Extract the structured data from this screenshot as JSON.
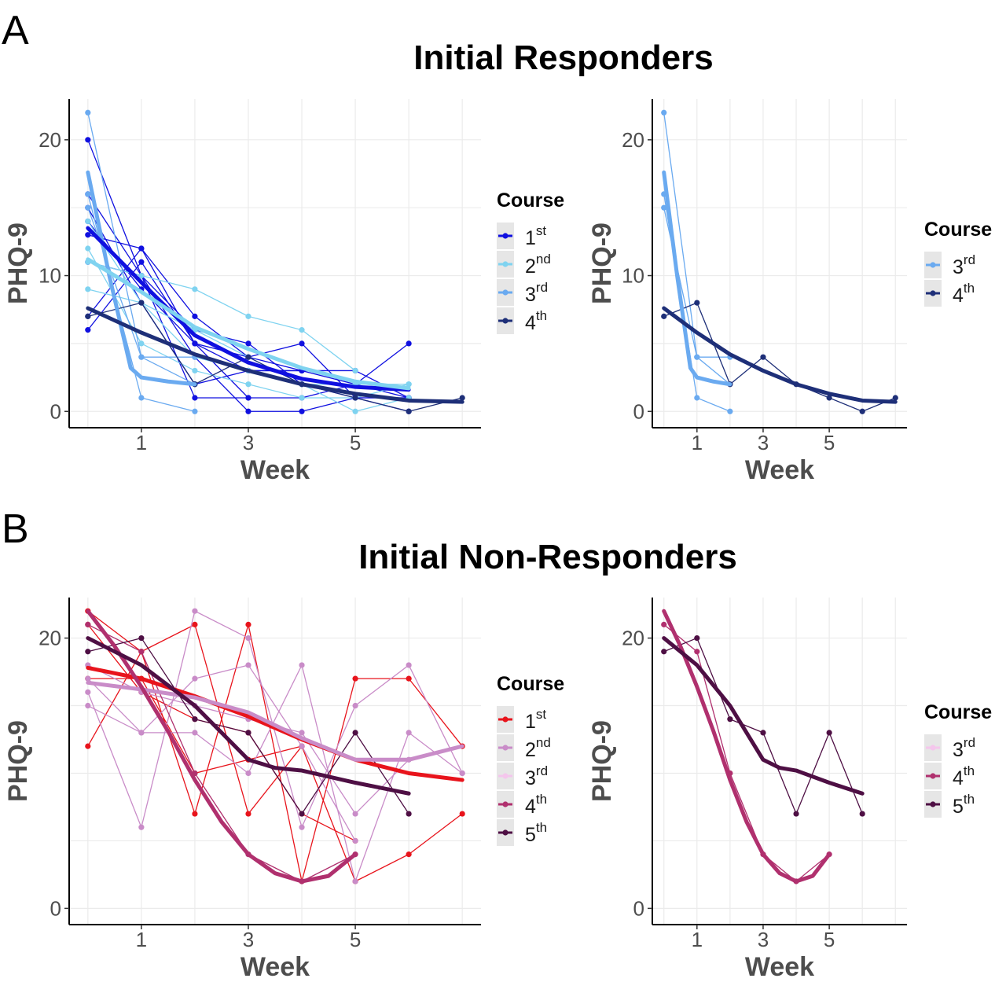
{
  "figure": {
    "panel_a": {
      "letter": "A",
      "title": "Initial Responders"
    },
    "panel_b": {
      "letter": "B",
      "title": "Initial Non-Responders"
    }
  },
  "colors": {
    "responders": {
      "1st": "#1010e0",
      "2nd": "#7fd3f0",
      "3rd": "#6aaaf0",
      "4th": "#1e2f78"
    },
    "nonresponders": {
      "1st": "#e8141c",
      "2nd": "#c98cc8",
      "3rd": "#f4c6ec",
      "4th": "#b0306e",
      "5th": "#4e0f44"
    },
    "grid": "#ebebeb",
    "legend_key_bg": "#e6e6e6"
  },
  "chart_data": [
    {
      "id": "A-all",
      "type": "line",
      "xlabel": "Week",
      "ylabel": "PHQ-9",
      "xlim": [
        -0.35,
        7.35
      ],
      "ylim": [
        -1.2,
        23
      ],
      "xticks": [
        1,
        3,
        5
      ],
      "yticks": [
        0,
        10,
        20
      ],
      "grid": true,
      "legend": {
        "title": "Course",
        "position": "right",
        "entries": [
          {
            "key": "1st",
            "base": "1",
            "sup": "st"
          },
          {
            "key": "2nd",
            "base": "2",
            "sup": "nd"
          },
          {
            "key": "3rd",
            "base": "3",
            "sup": "rd"
          },
          {
            "key": "4th",
            "base": "4",
            "sup": "th"
          }
        ]
      },
      "series": [
        {
          "course": "1st",
          "x": [
            0,
            1,
            2,
            3,
            4,
            5,
            6
          ],
          "y": [
            13,
            12,
            7,
            4,
            3,
            2,
            1
          ]
        },
        {
          "course": "1st",
          "x": [
            0,
            1,
            2,
            3,
            4,
            5,
            6
          ],
          "y": [
            20,
            10,
            6,
            5,
            2,
            1,
            1
          ]
        },
        {
          "course": "1st",
          "x": [
            0,
            1,
            2,
            3,
            4
          ],
          "y": [
            14,
            9,
            5,
            3,
            3
          ]
        },
        {
          "course": "1st",
          "x": [
            0,
            1,
            2,
            3,
            4,
            5,
            6
          ],
          "y": [
            7,
            12,
            5,
            4,
            5,
            1,
            0
          ]
        },
        {
          "course": "1st",
          "x": [
            0,
            1,
            2,
            3,
            4,
            5,
            6
          ],
          "y": [
            15,
            8,
            2,
            3,
            3,
            3,
            1
          ]
        },
        {
          "course": "1st",
          "x": [
            0,
            1,
            2,
            3,
            4,
            5,
            6
          ],
          "y": [
            16,
            10,
            1,
            1,
            1,
            2,
            5
          ]
        },
        {
          "course": "1st",
          "x": [
            0,
            1,
            2,
            3,
            4,
            5,
            6
          ],
          "y": [
            11,
            10,
            4,
            0,
            0,
            1,
            1
          ]
        },
        {
          "course": "1st",
          "x": [
            0,
            1,
            2,
            3
          ],
          "y": [
            6,
            11,
            5,
            1
          ]
        },
        {
          "course": "2nd",
          "x": [
            0,
            1,
            2,
            3,
            4,
            5
          ],
          "y": [
            11,
            10,
            9,
            7,
            6,
            3
          ]
        },
        {
          "course": "2nd",
          "x": [
            0,
            1,
            2,
            3,
            4,
            5,
            6
          ],
          "y": [
            14,
            8,
            6,
            4,
            2,
            2,
            2
          ]
        },
        {
          "course": "2nd",
          "x": [
            0,
            1,
            2,
            3,
            4,
            5,
            6
          ],
          "y": [
            9,
            8,
            4,
            3,
            2,
            0,
            1
          ]
        },
        {
          "course": "2nd",
          "x": [
            0,
            1,
            2,
            3,
            4,
            5,
            6
          ],
          "y": [
            12,
            5,
            3,
            2,
            1,
            1,
            2
          ]
        },
        {
          "course": "3rd",
          "x": [
            0,
            1,
            2
          ],
          "y": [
            22,
            4,
            4
          ]
        },
        {
          "course": "3rd",
          "x": [
            0,
            1,
            2
          ],
          "y": [
            16,
            1,
            0
          ]
        },
        {
          "course": "3rd",
          "x": [
            0,
            1,
            2
          ],
          "y": [
            15,
            4,
            2
          ]
        },
        {
          "course": "4th",
          "x": [
            0,
            1,
            2,
            3,
            4,
            5,
            6,
            7
          ],
          "y": [
            7,
            8,
            2,
            4,
            2,
            1,
            0,
            1
          ]
        }
      ],
      "trends": [
        {
          "course": "3rd",
          "x": [
            0,
            0.4,
            0.8,
            1,
            1.5,
            2
          ],
          "y": [
            17.6,
            10,
            3.2,
            2.5,
            2.2,
            2
          ]
        },
        {
          "course": "1st",
          "x": [
            0,
            1,
            2,
            3,
            4,
            5,
            6
          ],
          "y": [
            13.5,
            9.5,
            5.6,
            3.6,
            2.4,
            1.8,
            1.6
          ]
        },
        {
          "course": "2nd",
          "x": [
            0,
            1,
            2,
            3,
            4,
            5,
            6
          ],
          "y": [
            11.2,
            8.8,
            6.2,
            4.6,
            3.2,
            2.2,
            1.7
          ]
        },
        {
          "course": "4th",
          "x": [
            0,
            1,
            2,
            3,
            4,
            5,
            6,
            7
          ],
          "y": [
            7.6,
            5.8,
            4.2,
            3,
            2,
            1.3,
            0.8,
            0.7
          ]
        }
      ]
    },
    {
      "id": "A-late",
      "type": "line",
      "xlabel": "Week",
      "ylabel": "PHQ-9",
      "xlim": [
        -0.35,
        7.35
      ],
      "ylim": [
        -1.2,
        23
      ],
      "xticks": [
        1,
        3,
        5
      ],
      "yticks": [
        0,
        10,
        20
      ],
      "grid": true,
      "legend": {
        "title": "Course",
        "position": "right",
        "entries": [
          {
            "key": "3rd",
            "base": "3",
            "sup": "rd"
          },
          {
            "key": "4th",
            "base": "4",
            "sup": "th"
          }
        ]
      },
      "series": [
        {
          "course": "3rd",
          "x": [
            0,
            1,
            2
          ],
          "y": [
            22,
            4,
            4
          ]
        },
        {
          "course": "3rd",
          "x": [
            0,
            1,
            2
          ],
          "y": [
            16,
            1,
            0
          ]
        },
        {
          "course": "3rd",
          "x": [
            0,
            1,
            2
          ],
          "y": [
            15,
            4,
            2
          ]
        },
        {
          "course": "4th",
          "x": [
            0,
            1,
            2,
            3,
            4,
            5,
            6,
            7
          ],
          "y": [
            7,
            8,
            2,
            4,
            2,
            1,
            0,
            1
          ]
        }
      ],
      "trends": [
        {
          "course": "3rd",
          "x": [
            0,
            0.4,
            0.8,
            1,
            1.5,
            2
          ],
          "y": [
            17.6,
            10,
            3.2,
            2.5,
            2.2,
            2
          ]
        },
        {
          "course": "4th",
          "x": [
            0,
            1,
            2,
            3,
            4,
            5,
            6,
            7
          ],
          "y": [
            7.6,
            5.8,
            4.2,
            3,
            2,
            1.3,
            0.8,
            0.7
          ]
        }
      ]
    },
    {
      "id": "B-all",
      "type": "line",
      "xlabel": "Week",
      "ylabel": "PHQ-9",
      "xlim": [
        -0.35,
        7.35
      ],
      "ylim": [
        -1.2,
        23
      ],
      "xticks": [
        1,
        3,
        5
      ],
      "yticks": [
        0,
        20
      ],
      "grid": true,
      "legend": {
        "title": "Course",
        "position": "right",
        "entries": [
          {
            "key": "1st",
            "base": "1",
            "sup": "st"
          },
          {
            "key": "2nd",
            "base": "2",
            "sup": "nd"
          },
          {
            "key": "3rd",
            "base": "3",
            "sup": "rd"
          },
          {
            "key": "4th",
            "base": "4",
            "sup": "th"
          },
          {
            "key": "5th",
            "base": "5",
            "sup": "th"
          }
        ]
      },
      "series": [
        {
          "course": "1st",
          "x": [
            0,
            1,
            2,
            3,
            4,
            5,
            6,
            7
          ],
          "y": [
            22,
            19,
            7,
            21,
            2,
            17,
            17,
            12
          ]
        },
        {
          "course": "1st",
          "x": [
            0,
            1,
            2,
            3,
            4,
            5,
            6,
            7
          ],
          "y": [
            12,
            19,
            21,
            7,
            12,
            2,
            4,
            7
          ]
        },
        {
          "course": "1st",
          "x": [
            0,
            1,
            2,
            3,
            4,
            5
          ],
          "y": [
            21,
            16,
            14,
            13,
            7,
            5
          ]
        },
        {
          "course": "1st",
          "x": [
            0,
            1,
            2,
            3,
            4
          ],
          "y": [
            17,
            17,
            10,
            11,
            12
          ]
        },
        {
          "course": "2nd",
          "x": [
            0,
            1,
            2,
            3,
            4,
            5,
            6,
            7
          ],
          "y": [
            16,
            6,
            22,
            20,
            6,
            15,
            18,
            10
          ]
        },
        {
          "course": "2nd",
          "x": [
            0,
            1,
            2,
            3,
            4,
            5,
            6,
            7
          ],
          "y": [
            15,
            13,
            13,
            10,
            18,
            2,
            13,
            10
          ]
        },
        {
          "course": "2nd",
          "x": [
            0,
            1,
            2,
            3,
            4,
            5
          ],
          "y": [
            17,
            13,
            17,
            18,
            12,
            5
          ]
        },
        {
          "course": "2nd",
          "x": [
            0,
            1,
            2,
            3,
            4,
            5,
            6
          ],
          "y": [
            18,
            16,
            15,
            14,
            13,
            7,
            11
          ]
        },
        {
          "course": "4th",
          "x": [
            0,
            1,
            2,
            3,
            4,
            5
          ],
          "y": [
            21,
            19,
            10,
            4,
            2,
            4
          ]
        },
        {
          "course": "5th",
          "x": [
            0,
            1,
            2,
            3,
            4,
            5,
            6
          ],
          "y": [
            19,
            20,
            14,
            13,
            7,
            13,
            7
          ]
        }
      ],
      "trends": [
        {
          "course": "1st",
          "x": [
            0,
            1,
            2,
            3,
            4,
            5,
            6,
            7
          ],
          "y": [
            17.8,
            17,
            15.7,
            14.2,
            12.5,
            11,
            10,
            9.5
          ]
        },
        {
          "course": "2nd",
          "x": [
            0,
            1,
            2,
            3,
            4,
            5,
            6,
            7
          ],
          "y": [
            16.7,
            16.2,
            15.6,
            14.5,
            12.6,
            11,
            11,
            12
          ]
        },
        {
          "course": "4th",
          "x": [
            0,
            0.5,
            1,
            1.5,
            2,
            2.5,
            3,
            3.5,
            4,
            4.5,
            5
          ],
          "y": [
            22,
            19.4,
            16.4,
            13.1,
            9.5,
            6.4,
            4,
            2.6,
            2,
            2.4,
            4
          ]
        },
        {
          "course": "5th",
          "x": [
            0,
            1,
            2,
            2.5,
            3,
            3.5,
            4,
            5,
            6
          ],
          "y": [
            20,
            18,
            15,
            13,
            11,
            10.4,
            10.2,
            9.3,
            8.5
          ]
        }
      ]
    },
    {
      "id": "B-late",
      "type": "line",
      "xlabel": "Week",
      "ylabel": "PHQ-9",
      "xlim": [
        -0.35,
        7.35
      ],
      "ylim": [
        -1.2,
        23
      ],
      "xticks": [
        1,
        3,
        5
      ],
      "yticks": [
        0,
        20
      ],
      "grid": true,
      "legend": {
        "title": "Course",
        "position": "right",
        "entries": [
          {
            "key": "3rd",
            "base": "3",
            "sup": "rd"
          },
          {
            "key": "4th",
            "base": "4",
            "sup": "th"
          },
          {
            "key": "5th",
            "base": "5",
            "sup": "th"
          }
        ]
      },
      "series": [
        {
          "course": "4th",
          "x": [
            0,
            1,
            2,
            3,
            4,
            5
          ],
          "y": [
            21,
            19,
            10,
            4,
            2,
            4
          ]
        },
        {
          "course": "5th",
          "x": [
            0,
            1,
            2,
            3,
            4,
            5,
            6
          ],
          "y": [
            19,
            20,
            14,
            13,
            7,
            13,
            7
          ]
        }
      ],
      "trends": [
        {
          "course": "4th",
          "x": [
            0,
            0.5,
            1,
            1.5,
            2,
            2.5,
            3,
            3.5,
            4,
            4.5,
            5
          ],
          "y": [
            22,
            19.4,
            16.4,
            13.1,
            9.5,
            6.4,
            4,
            2.6,
            2,
            2.4,
            4
          ]
        },
        {
          "course": "5th",
          "x": [
            0,
            1,
            2,
            2.5,
            3,
            3.5,
            4,
            5,
            6
          ],
          "y": [
            20,
            18,
            15,
            13,
            11,
            10.4,
            10.2,
            9.3,
            8.5
          ]
        }
      ]
    }
  ]
}
